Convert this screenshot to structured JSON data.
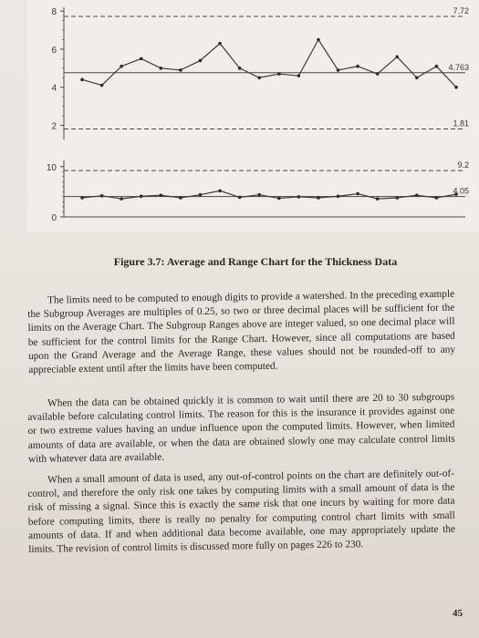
{
  "chart_data": [
    {
      "type": "line",
      "name": "average-chart",
      "y_ticks": [
        "8",
        "6",
        "4",
        "2"
      ],
      "ylim": [
        1.4,
        8.2
      ],
      "center_line": 4.763,
      "upper_limit": 7.72,
      "lower_limit": 1.81,
      "limit_labels": [
        "7.72",
        "4.763",
        "1.81"
      ],
      "values": [
        4.4,
        4.1,
        5.1,
        5.5,
        5.0,
        4.9,
        5.4,
        6.3,
        5.0,
        4.5,
        4.7,
        4.6,
        6.5,
        4.9,
        5.1,
        4.7,
        5.6,
        4.5,
        5.1,
        4.0
      ]
    },
    {
      "type": "line",
      "name": "range-chart",
      "y_ticks": [
        "10",
        "0"
      ],
      "ylim": [
        0,
        10.5
      ],
      "center_line": 4.05,
      "upper_limit": 9.2,
      "limit_labels": [
        "9.2",
        "4.05"
      ],
      "values": [
        3.8,
        4.2,
        3.6,
        4.1,
        4.3,
        3.8,
        4.4,
        5.2,
        3.9,
        4.4,
        3.7,
        4.0,
        3.8,
        4.1,
        4.6,
        3.6,
        3.8,
        4.3,
        3.8,
        4.5
      ]
    }
  ],
  "caption": {
    "label": "Figure 3.7:",
    "text": "Average and Range Chart for the Thickness Data"
  },
  "paragraphs": [
    "The limits need to be computed to enough digits to provide a watershed. In the preceding example the Subgroup Averages are multiples of 0.25, so two or three decimal places will be sufficient for the limits on the Average Chart. The Subgroup Ranges above are integer valued, so one decimal place will be sufficient for the control limits for the Range Chart. However, since all computations are based upon the Grand Average and the Average Range, these values should not be rounded-off to any appreciable extent until after the limits have been computed.",
    "When the data can be obtained quickly it is common to wait until there are 20 to 30 subgroups available before calculating control limits. The reason for this is the insurance it provides against one or two extreme values having an undue influence upon the computed limits. However, when limited amounts of data are available, or when the data are obtained slowly one may calculate control limits with whatever data are available.",
    "When a small amount of data is used, any out-of-control points on the chart are definitely out-of-control, and therefore the only risk one takes by computing limits with a small amount of data is the risk of missing a signal. Since this is exactly the same risk that one incurs by waiting for more data before computing limits, there is really no penalty for computing control chart limits with small amounts of data. If and when additional data become available, one may appropriately update the limits. The revision of control limits is discussed more fully on pages 226 to 230."
  ],
  "page_number": "45"
}
